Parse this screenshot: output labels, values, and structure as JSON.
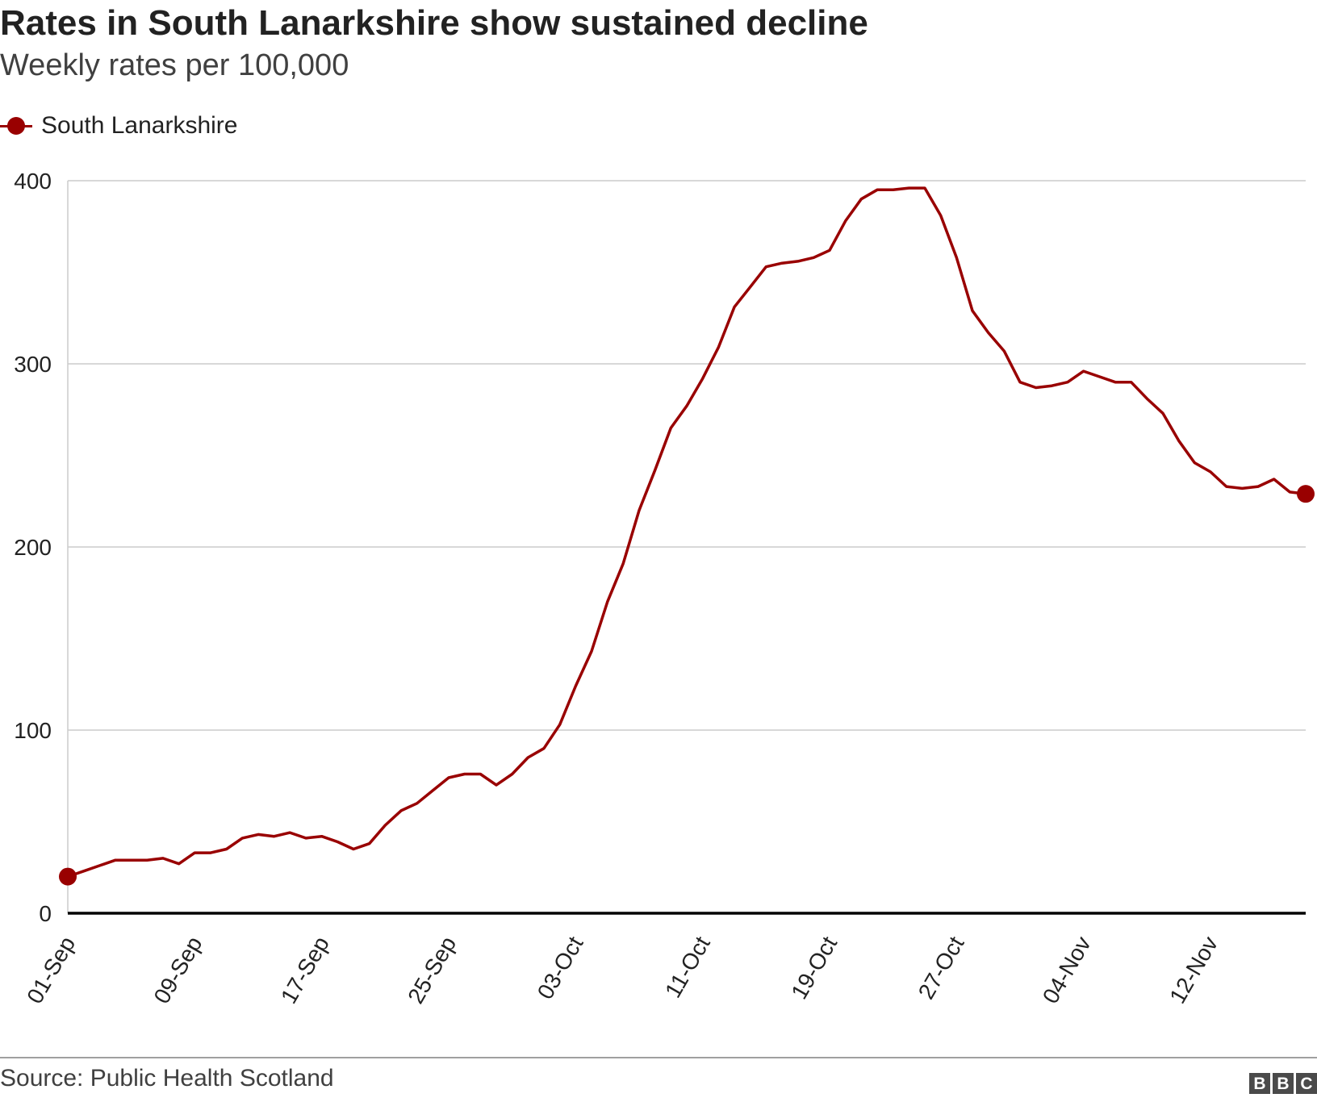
{
  "header": {
    "title": "Rates in South Lanarkshire show sustained decline",
    "subtitle": "Weekly rates per 100,000"
  },
  "legend": {
    "label": "South Lanarkshire"
  },
  "footer": {
    "source": "Source: Public Health Scotland"
  },
  "logo": {
    "letters": [
      "B",
      "B",
      "C"
    ]
  },
  "colors": {
    "series": "#990000",
    "grid": "#cccccc",
    "axis": "#000000",
    "text": "#222222"
  },
  "chart_data": {
    "type": "line",
    "title": "Rates in South Lanarkshire show sustained decline",
    "subtitle": "Weekly rates per 100,000",
    "xlabel": "",
    "ylabel": "",
    "ylim": [
      0,
      400
    ],
    "y_ticks": [
      0,
      100,
      200,
      300,
      400
    ],
    "x_tick_labels": [
      "01-Sep",
      "09-Sep",
      "17-Sep",
      "25-Sep",
      "03-Oct",
      "11-Oct",
      "19-Oct",
      "27-Oct",
      "04-Nov",
      "12-Nov"
    ],
    "x_tick_days": [
      0,
      8,
      16,
      24,
      32,
      40,
      48,
      56,
      64,
      72
    ],
    "x_range_days": [
      0,
      78
    ],
    "grid": true,
    "legend_position": "top-left",
    "series": [
      {
        "name": "South Lanarkshire",
        "x_days": [
          0,
          1,
          2,
          3,
          4,
          5,
          6,
          7,
          8,
          9,
          10,
          11,
          12,
          13,
          14,
          15,
          16,
          17,
          18,
          19,
          20,
          21,
          22,
          23,
          24,
          25,
          26,
          27,
          28,
          29,
          30,
          31,
          32,
          33,
          34,
          35,
          36,
          37,
          38,
          39,
          40,
          41,
          42,
          43,
          44,
          45,
          46,
          47,
          48,
          49,
          50,
          51,
          52,
          53,
          54,
          55,
          56,
          57,
          58,
          59,
          60,
          61,
          62,
          63,
          64,
          65,
          66,
          67,
          68,
          69,
          70,
          71,
          72,
          73,
          74,
          75,
          76,
          77,
          78
        ],
        "values": [
          20,
          23,
          26,
          29,
          29,
          29,
          30,
          27,
          33,
          33,
          35,
          41,
          43,
          42,
          44,
          41,
          42,
          39,
          35,
          38,
          48,
          56,
          60,
          67,
          74,
          76,
          76,
          70,
          76,
          85,
          90,
          103,
          124,
          143,
          170,
          191,
          220,
          242,
          265,
          277,
          292,
          309,
          331,
          342,
          353,
          355,
          356,
          358,
          362,
          378,
          390,
          395,
          395,
          396,
          396,
          381,
          358,
          329,
          317,
          307,
          290,
          287,
          288,
          290,
          296,
          293,
          290,
          290,
          281,
          273,
          258,
          246,
          241,
          233,
          232,
          233,
          237,
          230,
          229
        ]
      }
    ]
  }
}
